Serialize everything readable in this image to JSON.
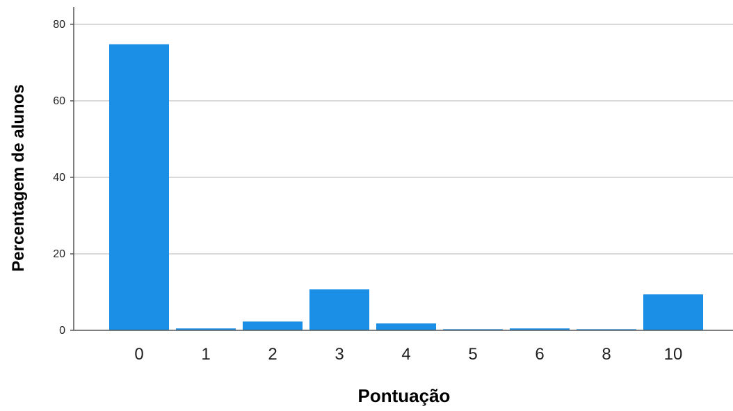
{
  "chart_data": {
    "type": "bar",
    "title": "",
    "xlabel": "Pontuação",
    "ylabel": "Percentagem de alunos",
    "categories": [
      "0",
      "1",
      "2",
      "3",
      "4",
      "5",
      "6",
      "8",
      "10"
    ],
    "values": [
      74.8,
      0.5,
      2.3,
      10.7,
      1.8,
      0.3,
      0.5,
      0.3,
      9.4
    ],
    "ylim": [
      0,
      80
    ],
    "yticks": [
      0,
      20,
      40,
      60,
      80
    ],
    "grid": true,
    "bar_color": "#1b8fe6",
    "grid_color": "#d9d9d9",
    "axis_color": "#555555"
  }
}
